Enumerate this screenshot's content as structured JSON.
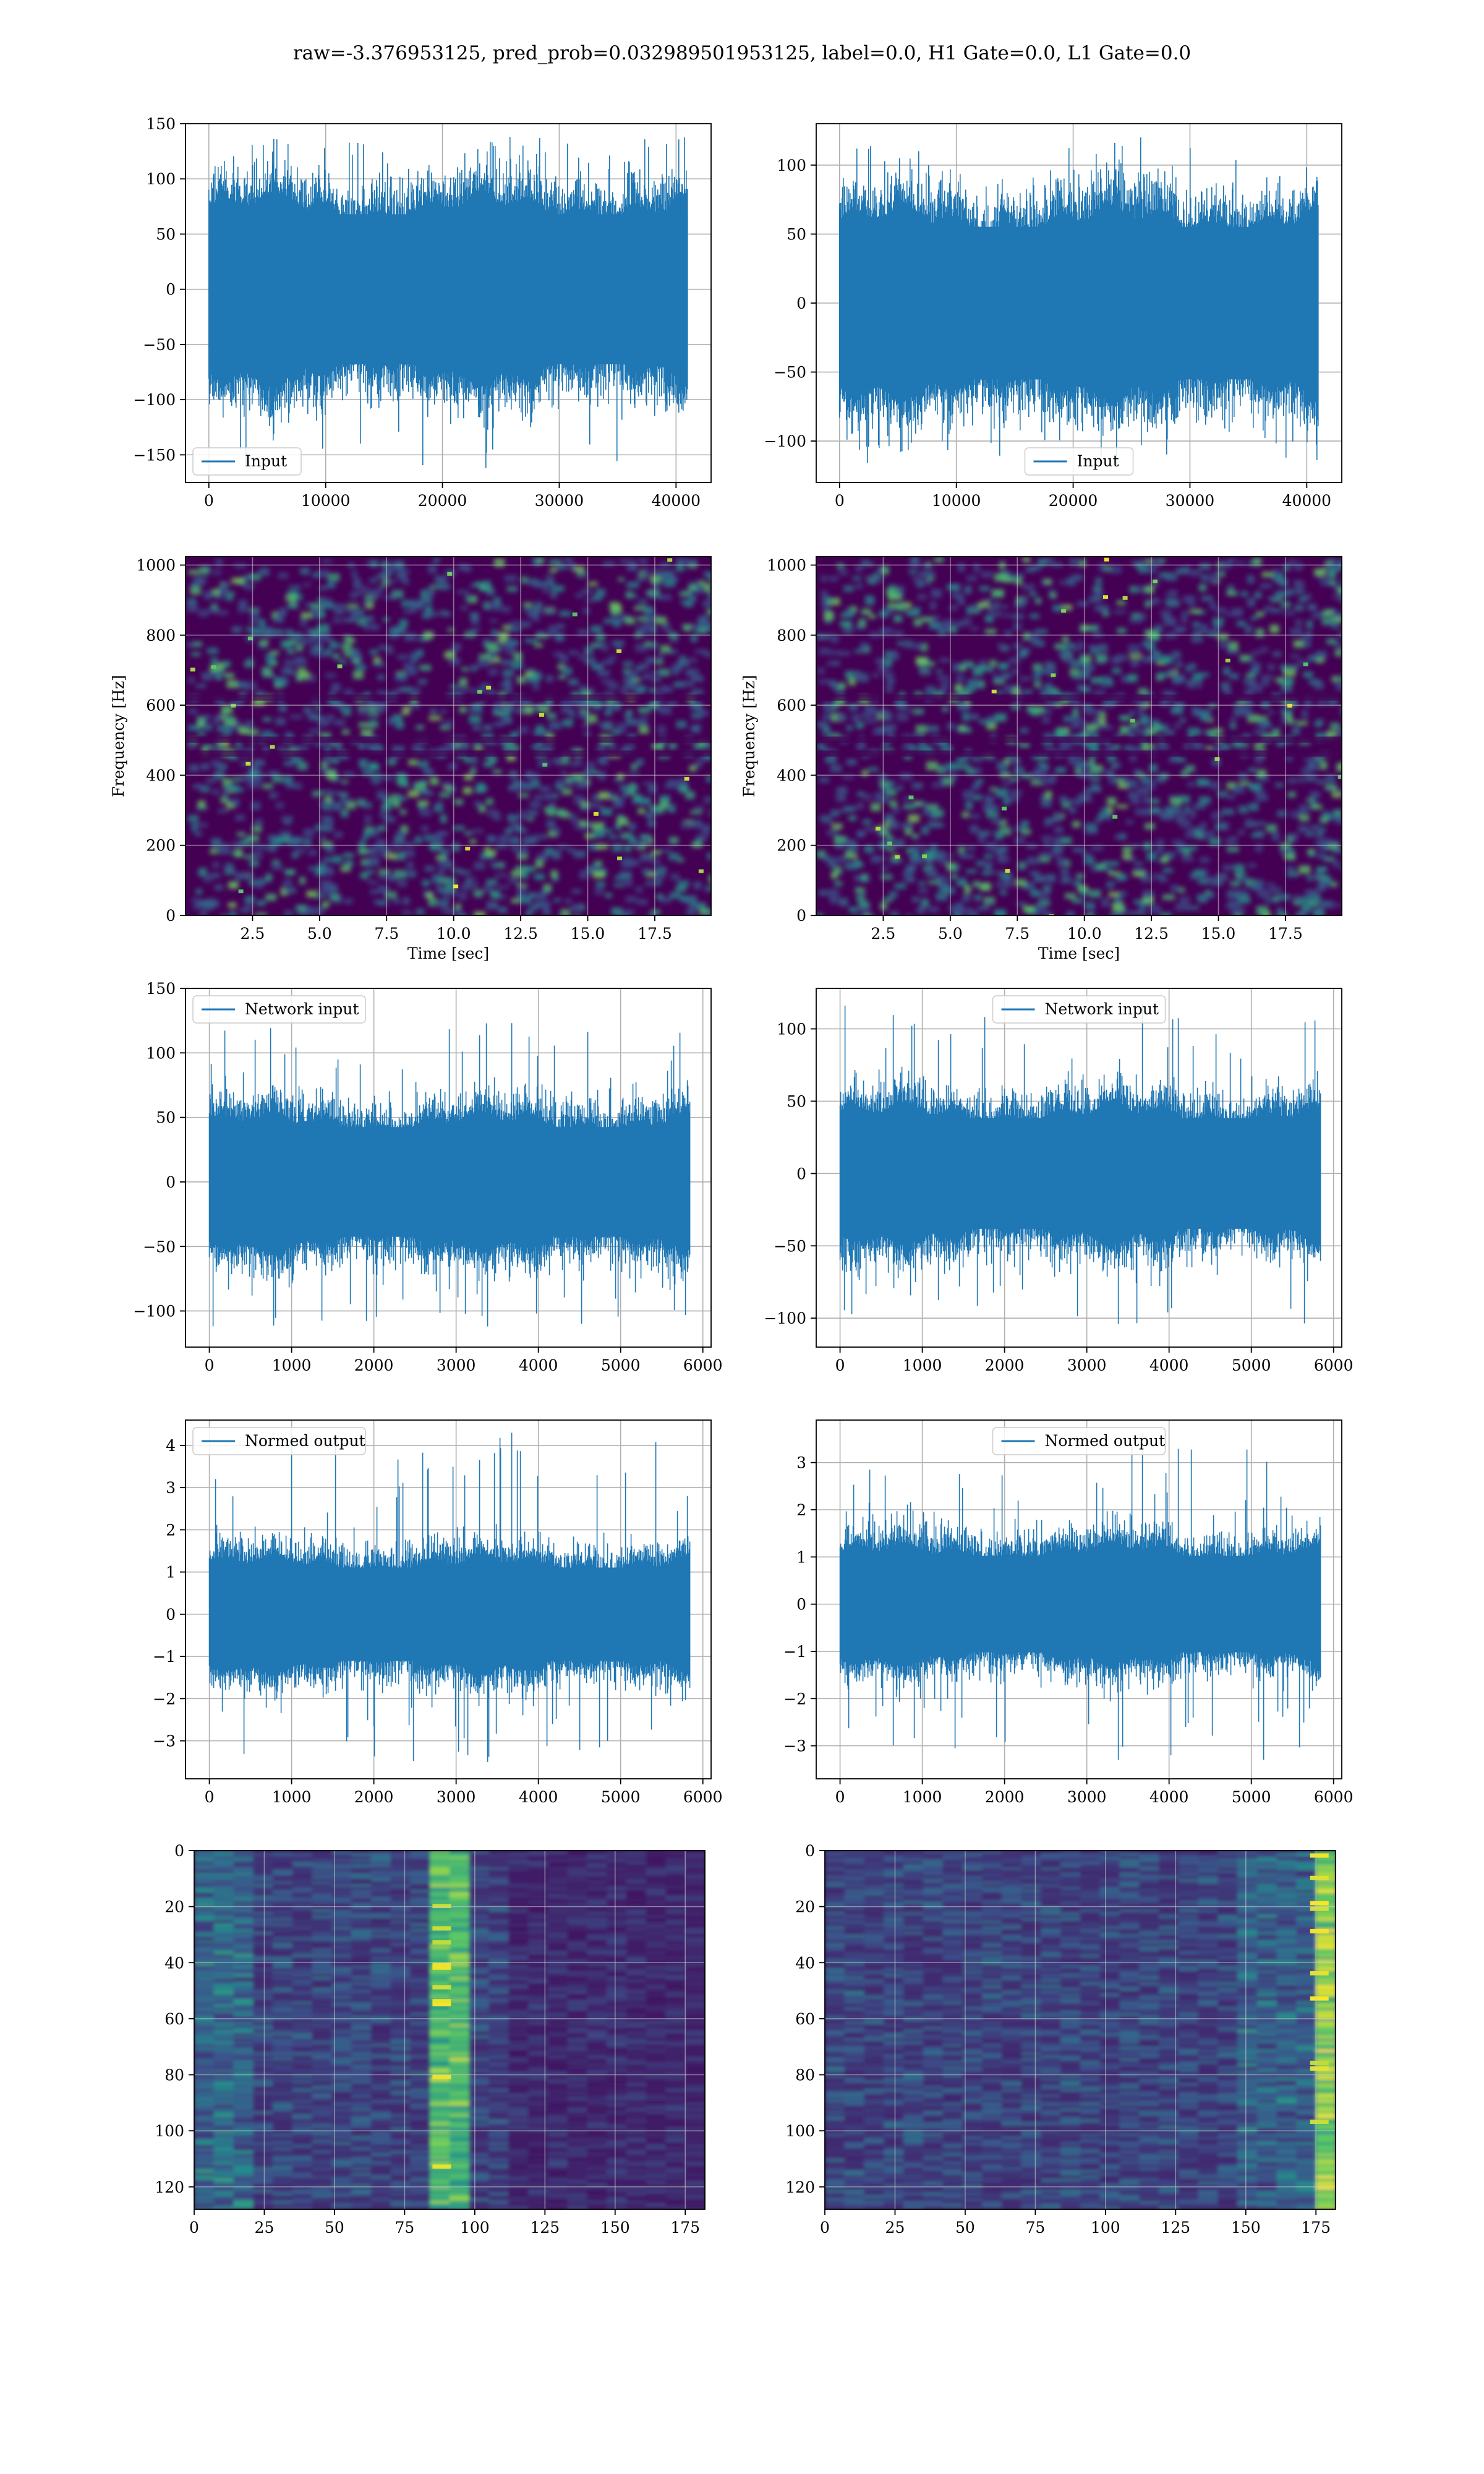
{
  "suptitle": "raw=-3.376953125, pred_prob=0.032989501953125, label=0.0, H1 Gate=0.0, L1 Gate=0.0",
  "colors": {
    "line": "#1f77b4",
    "grid": "#b0b0b0",
    "viridis_low": "#440154",
    "viridis_high": "#fde725"
  },
  "chart_data": [
    {
      "id": "p00",
      "type": "line",
      "legend": "Input",
      "legend_loc": "lower-left",
      "xlim": [
        -2000,
        43000
      ],
      "ylim": [
        -175,
        150
      ],
      "xticks": [
        0,
        10000,
        20000,
        30000,
        40000
      ],
      "yticks": [
        -150,
        -100,
        -50,
        0,
        50,
        100,
        150
      ],
      "series": [
        {
          "name": "Input",
          "n_samples": 40960,
          "band": [
            -80,
            80
          ],
          "peak_max": 138,
          "peak_min": -162
        }
      ],
      "grid": true
    },
    {
      "id": "p01",
      "type": "line",
      "legend": "Input",
      "legend_loc": "lower-center",
      "xlim": [
        -2000,
        43000
      ],
      "ylim": [
        -130,
        130
      ],
      "xticks": [
        0,
        10000,
        20000,
        30000,
        40000
      ],
      "yticks": [
        -100,
        -50,
        0,
        50,
        100
      ],
      "series": [
        {
          "name": "Input",
          "n_samples": 40960,
          "band": [
            -65,
            65
          ],
          "peak_max": 120,
          "peak_min": -118
        }
      ],
      "grid": true
    },
    {
      "id": "p10",
      "type": "heatmap",
      "xlabel": "Time [sec]",
      "ylabel": "Frequency [Hz]",
      "xlim": [
        0,
        19.6
      ],
      "ylim": [
        0,
        1024
      ],
      "xticks": [
        2.5,
        5.0,
        7.5,
        10.0,
        12.5,
        15.0,
        17.5
      ],
      "yticks": [
        0,
        200,
        400,
        600,
        800,
        1000
      ],
      "grid": true
    },
    {
      "id": "p11",
      "type": "heatmap",
      "xlabel": "Time [sec]",
      "ylabel": "Frequency [Hz]",
      "xlim": [
        0,
        19.6
      ],
      "ylim": [
        0,
        1024
      ],
      "xticks": [
        2.5,
        5.0,
        7.5,
        10.0,
        12.5,
        15.0,
        17.5
      ],
      "yticks": [
        0,
        200,
        400,
        600,
        800,
        1000
      ],
      "grid": true
    },
    {
      "id": "p20",
      "type": "line",
      "legend": "Network input",
      "legend_loc": "upper-left",
      "xlim": [
        -290,
        6100
      ],
      "ylim": [
        -128,
        150
      ],
      "xticks": [
        0,
        1000,
        2000,
        3000,
        4000,
        5000,
        6000
      ],
      "yticks": [
        -100,
        -50,
        0,
        50,
        100,
        150
      ],
      "series": [
        {
          "name": "Network input",
          "n_samples": 5840,
          "band": [
            -50,
            50
          ],
          "peak_max": 123,
          "peak_min": -112
        }
      ],
      "grid": true
    },
    {
      "id": "p21",
      "type": "line",
      "legend": "Network input",
      "legend_loc": "upper-center",
      "xlim": [
        -290,
        6100
      ],
      "ylim": [
        -120,
        128
      ],
      "xticks": [
        0,
        1000,
        2000,
        3000,
        4000,
        5000,
        6000
      ],
      "yticks": [
        -100,
        -50,
        0,
        50,
        100
      ],
      "series": [
        {
          "name": "Network input",
          "n_samples": 5840,
          "band": [
            -45,
            45
          ],
          "peak_max": 117,
          "peak_min": -104
        }
      ],
      "grid": true
    },
    {
      "id": "p30",
      "type": "line",
      "legend": "Normed output",
      "legend_loc": "upper-left",
      "xlim": [
        -290,
        6100
      ],
      "ylim": [
        -3.9,
        4.6
      ],
      "xticks": [
        0,
        1000,
        2000,
        3000,
        4000,
        5000,
        6000
      ],
      "yticks": [
        -3,
        -2,
        -1,
        0,
        1,
        2,
        3,
        4
      ],
      "series": [
        {
          "name": "Normed output",
          "n_samples": 5840,
          "band": [
            -1.3,
            1.3
          ],
          "peak_max": 4.3,
          "peak_min": -3.5
        }
      ],
      "grid": true
    },
    {
      "id": "p31",
      "type": "line",
      "legend": "Normed output",
      "legend_loc": "upper-center",
      "xlim": [
        -290,
        6100
      ],
      "ylim": [
        -3.7,
        3.9
      ],
      "xticks": [
        0,
        1000,
        2000,
        3000,
        4000,
        5000,
        6000
      ],
      "yticks": [
        -3,
        -2,
        -1,
        0,
        1,
        2,
        3
      ],
      "series": [
        {
          "name": "Normed output",
          "n_samples": 5840,
          "band": [
            -1.2,
            1.2
          ],
          "peak_max": 3.6,
          "peak_min": -3.3
        }
      ],
      "grid": true
    },
    {
      "id": "p40",
      "type": "heatmap",
      "xlim": [
        0,
        182
      ],
      "ylim": [
        128,
        0
      ],
      "xticks": [
        0,
        25,
        50,
        75,
        100,
        125,
        150,
        175
      ],
      "yticks": [
        0,
        20,
        40,
        60,
        80,
        100,
        120
      ],
      "hot_column": 88,
      "grid": true
    },
    {
      "id": "p41",
      "type": "heatmap",
      "xlim": [
        0,
        182
      ],
      "ylim": [
        128,
        0
      ],
      "xticks": [
        0,
        25,
        50,
        75,
        100,
        125,
        150,
        175
      ],
      "yticks": [
        0,
        20,
        40,
        60,
        80,
        100,
        120
      ],
      "hot_column": 176,
      "grid": true
    }
  ]
}
